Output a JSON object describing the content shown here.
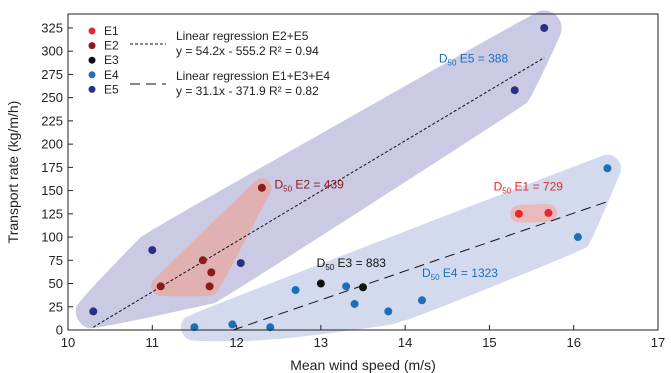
{
  "chart_data": {
    "type": "scatter",
    "xlabel": "Mean wind speed (m/s)",
    "ylabel": "Transport rate (kg/m/h)",
    "xlim": [
      10,
      17
    ],
    "ylim": [
      0,
      340
    ],
    "xticks": [
      "10",
      "11",
      "12",
      "13",
      "14",
      "15",
      "16",
      "17"
    ],
    "yticks": [
      "0",
      "25",
      "50",
      "75",
      "100",
      "125",
      "150",
      "175",
      "200",
      "225",
      "250",
      "275",
      "300",
      "325"
    ],
    "grid": false,
    "legend_position": "top-left",
    "series": [
      {
        "name": "E1",
        "color": "#e32b2b",
        "points": [
          [
            15.35,
            125
          ],
          [
            15.7,
            126
          ]
        ]
      },
      {
        "name": "E2",
        "color": "#8b1a1a",
        "points": [
          [
            11.1,
            47
          ],
          [
            11.6,
            75
          ],
          [
            11.7,
            62
          ],
          [
            11.68,
            47
          ],
          [
            12.3,
            153
          ]
        ]
      },
      {
        "name": "E3",
        "color": "#111111",
        "points": [
          [
            13.0,
            50
          ],
          [
            13.5,
            46
          ]
        ]
      },
      {
        "name": "E4",
        "color": "#1d6fb8",
        "points": [
          [
            11.5,
            3
          ],
          [
            11.95,
            6
          ],
          [
            12.4,
            3
          ],
          [
            12.7,
            43
          ],
          [
            13.3,
            47
          ],
          [
            13.4,
            28
          ],
          [
            13.8,
            20
          ],
          [
            14.2,
            32
          ],
          [
            16.05,
            100
          ],
          [
            16.4,
            174
          ]
        ]
      },
      {
        "name": "E5",
        "color": "#2b2f82",
        "points": [
          [
            10.3,
            20
          ],
          [
            11.0,
            86
          ],
          [
            12.05,
            72
          ],
          [
            15.3,
            258
          ],
          [
            15.65,
            325
          ]
        ]
      }
    ],
    "regressions": [
      {
        "label": "Linear regression E2+E5",
        "equation": "y = 54.2x - 555.2  R² = 0.94",
        "slope": 54.2,
        "intercept": -555.2,
        "x_range": [
          10.3,
          15.65
        ],
        "style": "dotted"
      },
      {
        "label": "Linear regression E1+E3+E4",
        "equation": "y = 31.1x - 371.9  R² = 0.82",
        "slope": 31.1,
        "intercept": -371.9,
        "x_range": [
          11.95,
          16.4
        ],
        "style": "dashed"
      }
    ],
    "annotations": [
      {
        "prefix": "D",
        "sub": "50",
        "text": " E5 = 388",
        "x": 14.4,
        "y": 288,
        "color": "#1d6fb8"
      },
      {
        "prefix": "D",
        "sub": "50",
        "text": " E2 = 439",
        "x": 12.45,
        "y": 152,
        "color": "#8b1a1a"
      },
      {
        "prefix": "D",
        "sub": "50",
        "text": " E1 = 729",
        "x": 15.05,
        "y": 150,
        "color": "#e32b2b"
      },
      {
        "prefix": "D",
        "sub": "50",
        "text": " E3 = 883",
        "x": 12.95,
        "y": 68,
        "color": "#111111"
      },
      {
        "prefix": "D",
        "sub": "50",
        "text": " E4 = 1323",
        "x": 14.2,
        "y": 57,
        "color": "#1d6fb8"
      }
    ],
    "shaded_regions": [
      {
        "group": "E2+E5",
        "color": "#b8b8dc",
        "opacity": 0.75
      },
      {
        "group": "E1+E3+E4",
        "color": "#c4cde8",
        "opacity": 0.75
      },
      {
        "group": "E2",
        "color": "#e8a8a0",
        "opacity": 0.75
      },
      {
        "group": "E1",
        "color": "#f0b0ae",
        "opacity": 0.8
      }
    ]
  }
}
